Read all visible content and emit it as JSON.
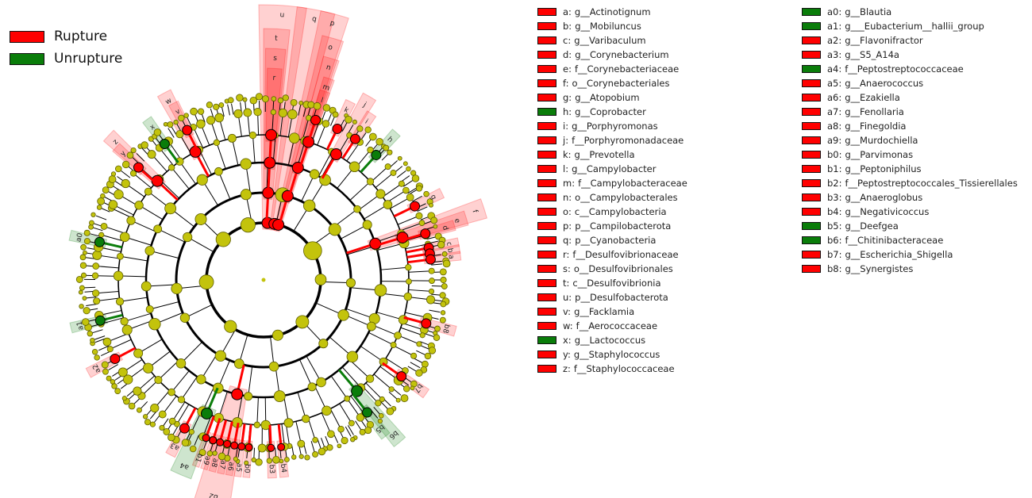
{
  "groups": [
    {
      "name": "Rupture",
      "color": "#ff0000"
    },
    {
      "name": "Unrupture",
      "color": "#0a7d0a"
    }
  ],
  "legend_col1": [
    {
      "key": "a",
      "taxon": "g__Actinotignum",
      "group": "Rupture"
    },
    {
      "key": "b",
      "taxon": "g__Mobiluncus",
      "group": "Rupture"
    },
    {
      "key": "c",
      "taxon": "g__Varibaculum",
      "group": "Rupture"
    },
    {
      "key": "d",
      "taxon": "g__Corynebacterium",
      "group": "Rupture"
    },
    {
      "key": "e",
      "taxon": "f__Corynebacteriaceae",
      "group": "Rupture"
    },
    {
      "key": "f",
      "taxon": "o__Corynebacteriales",
      "group": "Rupture"
    },
    {
      "key": "g",
      "taxon": "g__Atopobium",
      "group": "Rupture"
    },
    {
      "key": "h",
      "taxon": "g__Coprobacter",
      "group": "Unrupture"
    },
    {
      "key": "i",
      "taxon": "g__Porphyromonas",
      "group": "Rupture"
    },
    {
      "key": "j",
      "taxon": "f__Porphyromonadaceae",
      "group": "Rupture"
    },
    {
      "key": "k",
      "taxon": "g__Prevotella",
      "group": "Rupture"
    },
    {
      "key": "l",
      "taxon": "g__Campylobacter",
      "group": "Rupture"
    },
    {
      "key": "m",
      "taxon": "f__Campylobacteraceae",
      "group": "Rupture"
    },
    {
      "key": "n",
      "taxon": "o__Campylobacterales",
      "group": "Rupture"
    },
    {
      "key": "o",
      "taxon": "c__Campylobacteria",
      "group": "Rupture"
    },
    {
      "key": "p",
      "taxon": "p__Campilobacterota",
      "group": "Rupture"
    },
    {
      "key": "q",
      "taxon": "p__Cyanobacteria",
      "group": "Rupture"
    },
    {
      "key": "r",
      "taxon": "f__Desulfovibrionaceae",
      "group": "Rupture"
    },
    {
      "key": "s",
      "taxon": "o__Desulfovibrionales",
      "group": "Rupture"
    },
    {
      "key": "t",
      "taxon": "c__Desulfovibrionia",
      "group": "Rupture"
    },
    {
      "key": "u",
      "taxon": "p__Desulfobacterota",
      "group": "Rupture"
    },
    {
      "key": "v",
      "taxon": "g__Facklamia",
      "group": "Rupture"
    },
    {
      "key": "w",
      "taxon": "f__Aerococcaceae",
      "group": "Rupture"
    },
    {
      "key": "x",
      "taxon": "g__Lactococcus",
      "group": "Unrupture"
    },
    {
      "key": "y",
      "taxon": "g__Staphylococcus",
      "group": "Rupture"
    },
    {
      "key": "z",
      "taxon": "f__Staphylococcaceae",
      "group": "Rupture"
    }
  ],
  "legend_col2": [
    {
      "key": "a0",
      "taxon": "g__Blautia",
      "group": "Unrupture"
    },
    {
      "key": "a1",
      "taxon": "g___Eubacterium__hallii_group",
      "group": "Unrupture"
    },
    {
      "key": "a2",
      "taxon": "g__Flavonifractor",
      "group": "Rupture"
    },
    {
      "key": "a3",
      "taxon": "g__S5_A14a",
      "group": "Rupture"
    },
    {
      "key": "a4",
      "taxon": "f__Peptostreptococcaceae",
      "group": "Unrupture"
    },
    {
      "key": "a5",
      "taxon": "g__Anaerococcus",
      "group": "Rupture"
    },
    {
      "key": "a6",
      "taxon": "g__Ezakiella",
      "group": "Rupture"
    },
    {
      "key": "a7",
      "taxon": "g__Fenollaria",
      "group": "Rupture"
    },
    {
      "key": "a8",
      "taxon": "g__Finegoldia",
      "group": "Rupture"
    },
    {
      "key": "a9",
      "taxon": "g__Murdochiella",
      "group": "Rupture"
    },
    {
      "key": "b0",
      "taxon": "g__Parvimonas",
      "group": "Rupture"
    },
    {
      "key": "b1",
      "taxon": "g__Peptoniphilus",
      "group": "Rupture"
    },
    {
      "key": "b2",
      "taxon": "f__Peptostreptococcales_Tissierellales",
      "group": "Rupture"
    },
    {
      "key": "b3",
      "taxon": "g__Anaeroglobus",
      "group": "Rupture"
    },
    {
      "key": "b4",
      "taxon": "g__Negativicoccus",
      "group": "Rupture"
    },
    {
      "key": "b5",
      "taxon": "g__Deefgea",
      "group": "Unrupture"
    },
    {
      "key": "b6",
      "taxon": "f__Chitinibacteraceae",
      "group": "Unrupture"
    },
    {
      "key": "b7",
      "taxon": "g__Escherichia_Shigella",
      "group": "Rupture"
    },
    {
      "key": "b8",
      "taxon": "g__Synergistes",
      "group": "Rupture"
    }
  ]
}
